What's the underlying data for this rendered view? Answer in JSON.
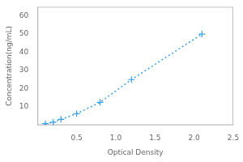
{
  "chart_data": {
    "type": "line",
    "x": [
      0.1,
      0.2,
      0.3,
      0.5,
      0.8,
      1.2,
      2.1
    ],
    "values": [
      0.78,
      1.56,
      3.13,
      6.25,
      12.5,
      25.0,
      50.0
    ],
    "xlabel": "Optical Density",
    "ylabel": "Concentration(ng/mL)",
    "xlim": [
      0,
      2.5
    ],
    "ylim": [
      0,
      65
    ],
    "xticks": [
      0.5,
      {
        "value": 1.0,
        "label": "1.0"
      },
      1.5,
      {
        "value": 2.0,
        "label": "2.0"
      },
      2.5
    ],
    "yticks": [
      10,
      20,
      30,
      40,
      50,
      60
    ],
    "marker": "plus",
    "line_style": "dotted",
    "grid": false
  }
}
